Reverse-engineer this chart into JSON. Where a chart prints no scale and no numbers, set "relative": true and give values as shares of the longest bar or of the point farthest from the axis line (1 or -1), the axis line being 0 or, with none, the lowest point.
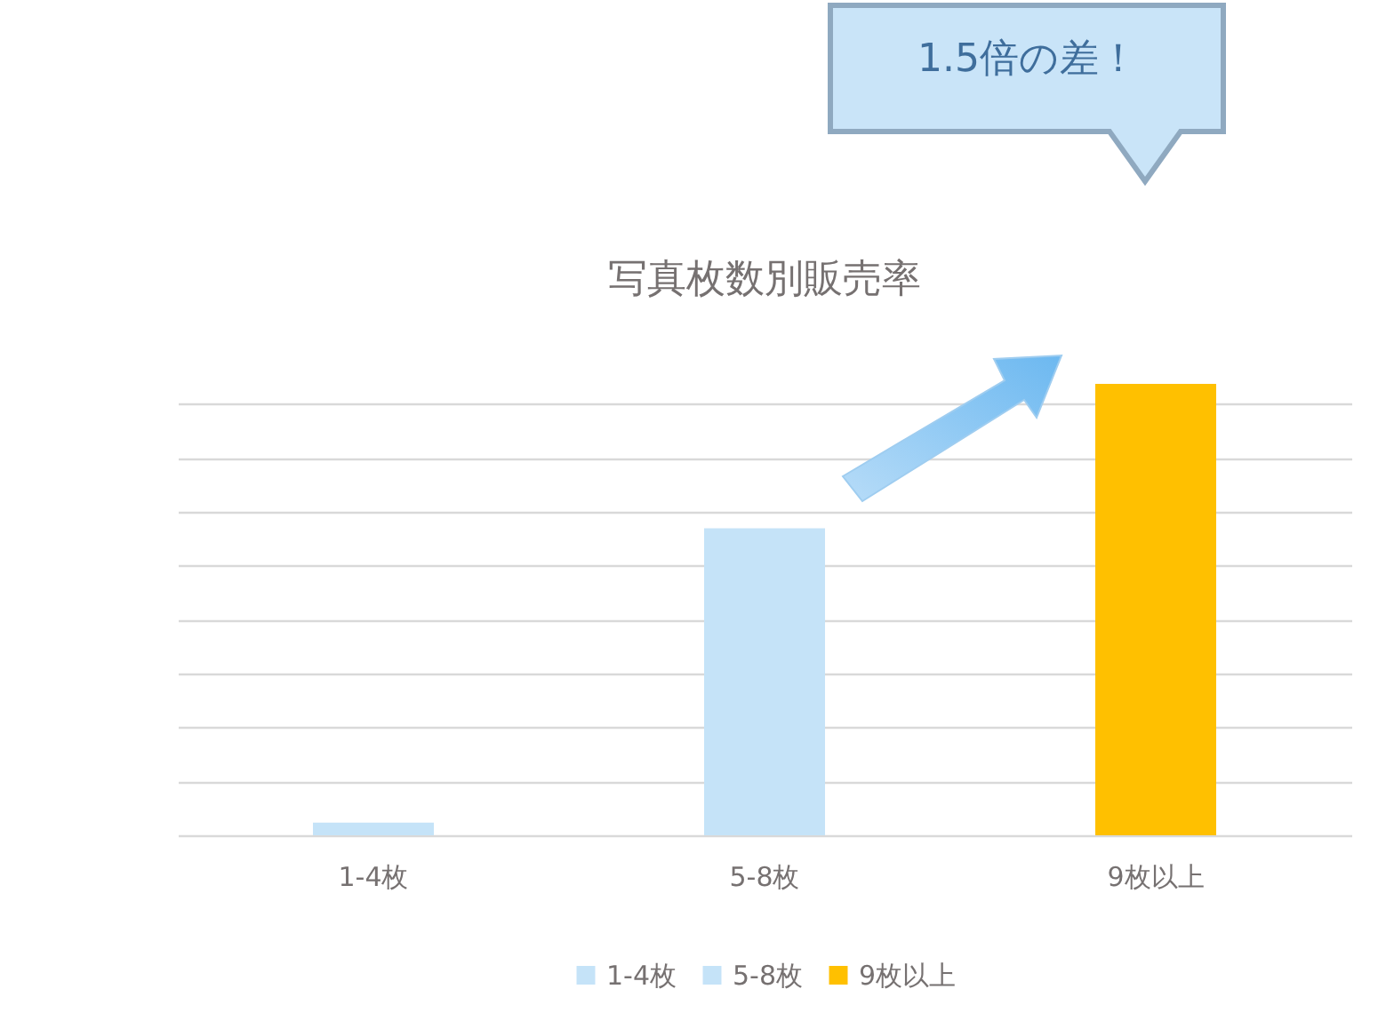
{
  "chart_data": {
    "type": "bar",
    "title": "写真枚数別販売率",
    "categories": [
      "1-4枚",
      "5-8枚",
      "9枚以上"
    ],
    "series": [
      {
        "name": "1-4枚",
        "color": "#c5e3f8",
        "values": [
          0.028,
          null,
          null
        ]
      },
      {
        "name": "5-8枚",
        "color": "#c5e3f8",
        "values": [
          null,
          0.68,
          null
        ]
      },
      {
        "name": "9枚以上",
        "color": "#ffc000",
        "values": [
          null,
          null,
          1
        ]
      }
    ],
    "relative": true,
    "grid": "y",
    "legend": "bottom",
    "annotations": [
      "1.5倍の差！"
    ]
  }
}
